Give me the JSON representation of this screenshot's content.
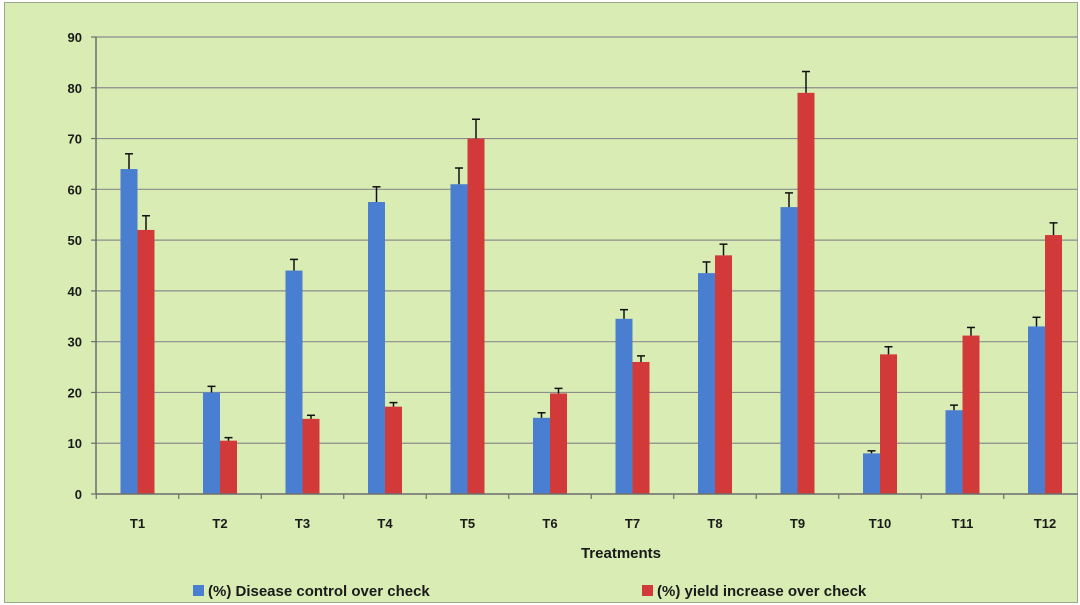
{
  "chart_data": {
    "type": "bar",
    "title": "",
    "xlabel": "Treatments",
    "ylabel": "",
    "ylim": [
      0,
      90
    ],
    "yticks": [
      0,
      10,
      20,
      30,
      40,
      50,
      60,
      70,
      80,
      90
    ],
    "grid": true,
    "legend_position": "bottom",
    "categories": [
      "T1",
      "T2",
      "T3",
      "T4",
      "T5",
      "T6",
      "T7",
      "T8",
      "T9",
      "T10",
      "T11",
      "T12"
    ],
    "series": [
      {
        "name": "(%) Disease control over check",
        "color": "#4a7ed1",
        "values": [
          64,
          20,
          44,
          57.5,
          61,
          15,
          34.5,
          43.5,
          56.5,
          8,
          16.5,
          33
        ],
        "errors": [
          3,
          1.2,
          2.2,
          3,
          3.2,
          1,
          1.8,
          2.2,
          2.8,
          0.5,
          1,
          1.8
        ]
      },
      {
        "name": "(%) yield increase over check",
        "color": "#d23a3a",
        "values": [
          52,
          10.5,
          14.8,
          17.2,
          70,
          19.8,
          26,
          47,
          79,
          27.5,
          31.2,
          51
        ],
        "errors": [
          2.8,
          0.6,
          0.7,
          0.8,
          3.8,
          1,
          1.2,
          2.2,
          4.2,
          1.5,
          1.6,
          2.4
        ]
      }
    ]
  }
}
